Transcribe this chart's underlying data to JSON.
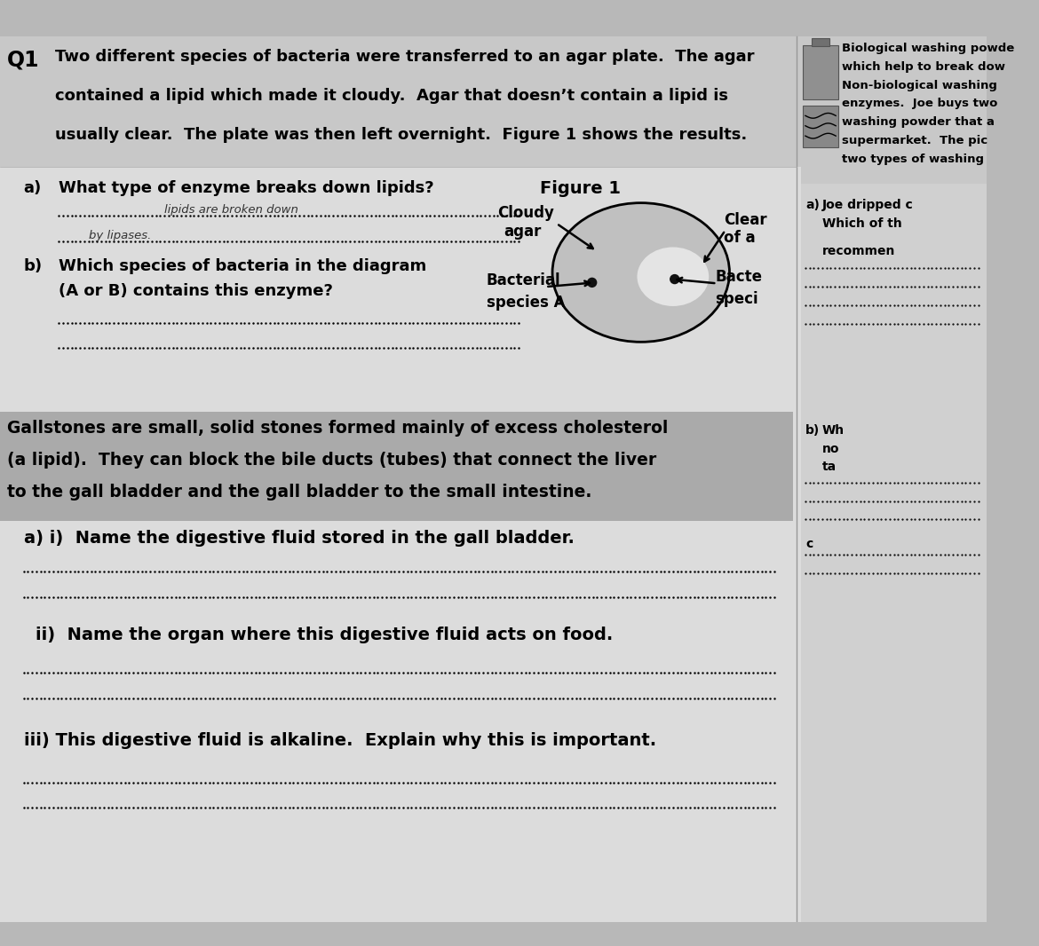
{
  "overall_bg": "#b8b8b8",
  "page_bg": "#e0e0e0",
  "q1_box_bg": "#c8c8c8",
  "right_col_bg": "#d0d0d0",
  "gallstone_box_bg": "#aaaaaa",
  "lower_bg": "#d8d8d8",
  "q1_label": "Q1",
  "q1_line1": "Two different species of bacteria were transferred to an agar plate.  The agar",
  "q1_line2": "contained a lipid which made it cloudy.  Agar that doesn’t contain a lipid is",
  "q1_line3": "usually clear.  The plate was then left overnight.  Figure 1 shows the results.",
  "qa_label": "a)",
  "qa_text": "What type of enzyme breaks down lipids?",
  "qa_ans1": "lipids are broken down",
  "qa_ans2": "by lipases.",
  "qb_label": "b)",
  "qb_text1": "Which species of bacteria in the diagram",
  "qb_text2": "(A or B) contains this enzyme?",
  "fig1_label": "Figure 1",
  "cloudy_label1": "Cloudy",
  "cloudy_label2": "agar",
  "clear_label1": "Clear",
  "clear_label2": "of a",
  "bact_a1": "Bacterial",
  "bact_a2": "species A",
  "bact_b1": "Bacte",
  "bact_b2": "speci",
  "gallstone_line1": "Gallstones are small, solid stones formed mainly of excess cholesterol",
  "gallstone_line2": "(a lipid).  They can block the bile ducts (tubes) that connect the liver",
  "gallstone_line3": "to the gall bladder and the gall bladder to the small intestine.",
  "q2ai_text": "a) i)  Name the digestive fluid stored in the gall bladder.",
  "q2aii_text": "ii)  Name the organ where this digestive fluid acts on food.",
  "q2aiii_text": "iii) This digestive fluid is alkaline.  Explain why this is important.",
  "rc_line1": "Biological washing powde",
  "rc_line2": "which help to break dow",
  "rc_line3": "Non-biological washing",
  "rc_line4": "enzymes.  Joe buys two",
  "rc_line5": "washing powder that a",
  "rc_line6": "supermarket.  The pic",
  "rc_line7": "two types of washing",
  "rc_a_label": "a)",
  "rc_a_text1": "Joe dripped c",
  "rc_a_text2": "Which of th",
  "rc_recommen": "recommen",
  "rc_b_label": "b)",
  "rc_b_text1": "Wh",
  "rc_b_text2": "no",
  "rc_b_text3": "ta",
  "rc_c_label": "c"
}
